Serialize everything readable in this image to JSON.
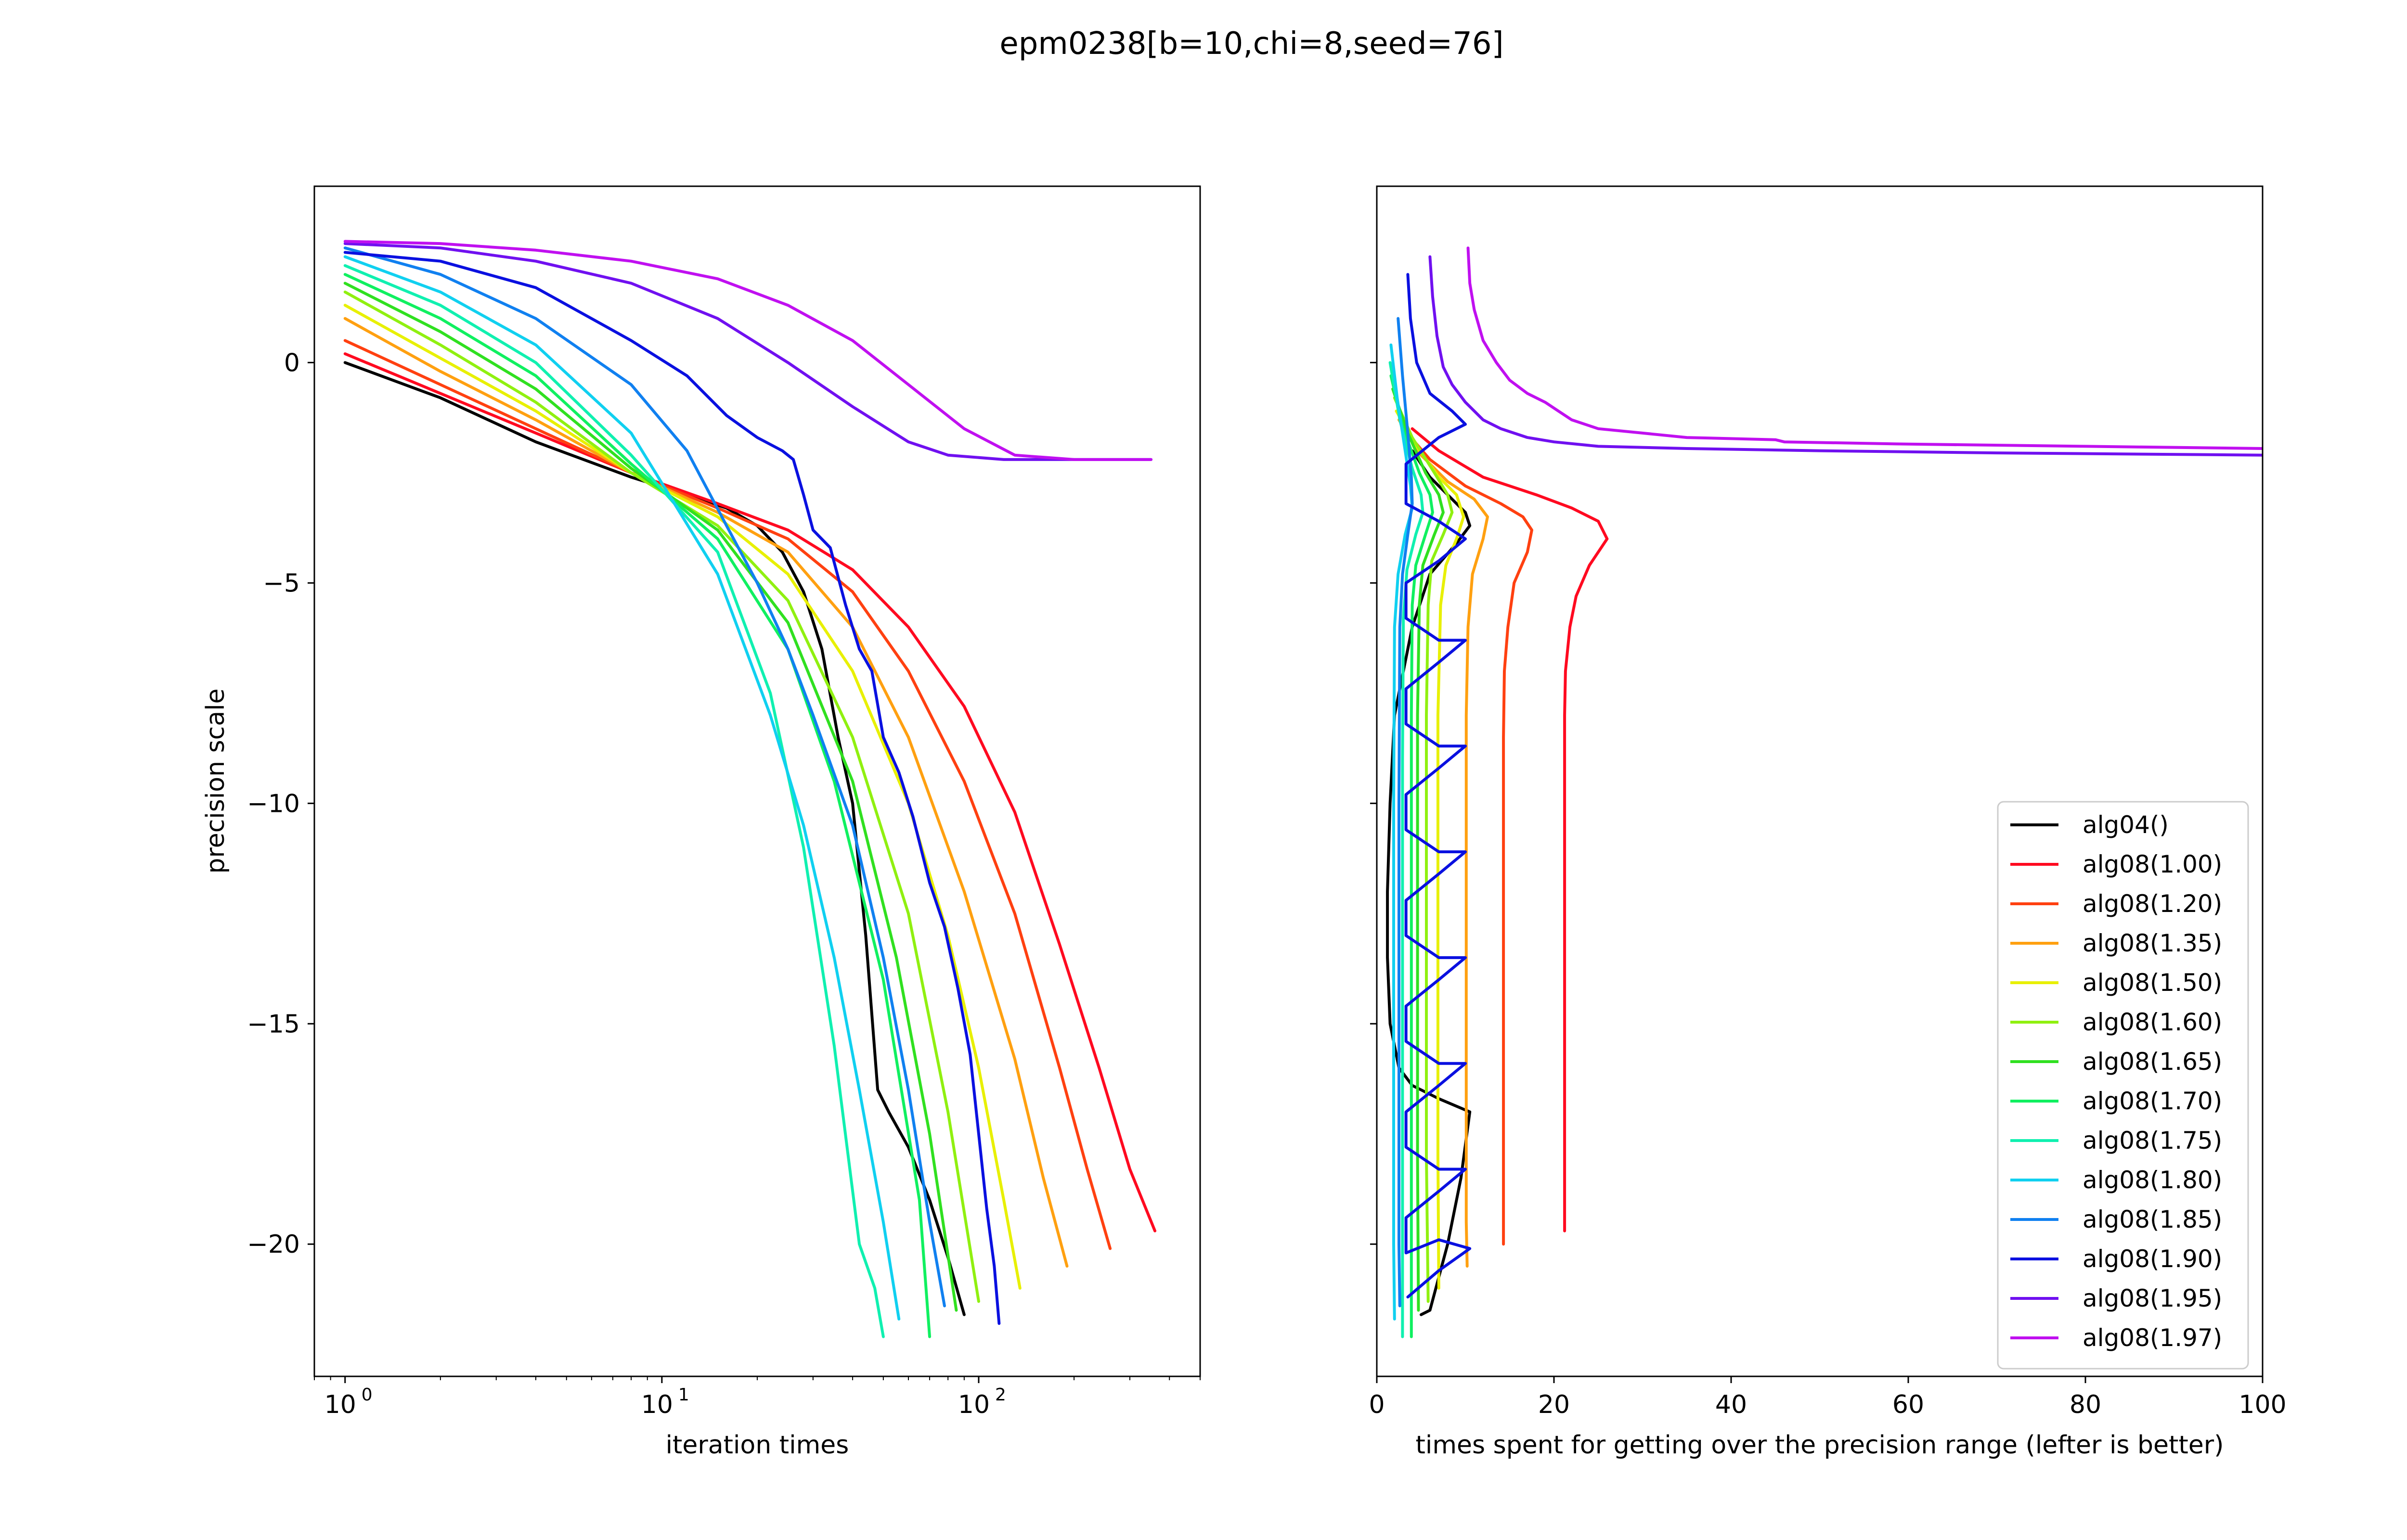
{
  "title": "epm0238[b=10,chi=8,seed=76]",
  "chart_data": [
    {
      "type": "line",
      "xscale": "log",
      "xlabel": "iteration times",
      "ylabel": "precision scale",
      "xlim": [
        0.8,
        500
      ],
      "ylim": [
        -23,
        4
      ],
      "xticks": [
        {
          "value": 1,
          "base": "10",
          "exp": "0"
        },
        {
          "value": 10,
          "base": "10",
          "exp": "1"
        },
        {
          "value": 100,
          "base": "10",
          "exp": "2"
        }
      ],
      "yticks": [
        {
          "value": 0,
          "label": "0"
        },
        {
          "value": -5,
          "label": "−5"
        },
        {
          "value": -10,
          "label": "−10"
        },
        {
          "value": -15,
          "label": "−15"
        },
        {
          "value": -20,
          "label": "−20"
        }
      ],
      "series": [
        {
          "name": "alg04()",
          "color": "#000000",
          "x": [
            1,
            2,
            4,
            8,
            12,
            16,
            20,
            24,
            28,
            32,
            36,
            40,
            44,
            48,
            52,
            60,
            70,
            80,
            90
          ],
          "y": [
            0,
            -0.8,
            -1.8,
            -2.6,
            -3.0,
            -3.3,
            -3.7,
            -4.3,
            -5.2,
            -6.5,
            -8.5,
            -10.0,
            -13,
            -16.5,
            -17.0,
            -17.8,
            -19.0,
            -20.3,
            -21.6
          ]
        },
        {
          "name": "alg08(1.00)",
          "color": "#ff0a20",
          "x": [
            1,
            2,
            4,
            8,
            15,
            25,
            40,
            60,
            90,
            130,
            180,
            240,
            300,
            360
          ],
          "y": [
            0.2,
            -0.7,
            -1.6,
            -2.5,
            -3.2,
            -3.8,
            -4.7,
            -6.0,
            -7.8,
            -10.2,
            -13.2,
            -16.0,
            -18.3,
            -19.7
          ]
        },
        {
          "name": "alg08(1.20)",
          "color": "#ff4010",
          "x": [
            1,
            2,
            4,
            8,
            15,
            25,
            40,
            60,
            90,
            130,
            180,
            220,
            260
          ],
          "y": [
            0.5,
            -0.5,
            -1.5,
            -2.5,
            -3.3,
            -4.0,
            -5.2,
            -7.0,
            -9.5,
            -12.5,
            -16.0,
            -18.3,
            -20.1
          ]
        },
        {
          "name": "alg08(1.35)",
          "color": "#ffa010",
          "x": [
            1,
            2,
            4,
            8,
            15,
            25,
            40,
            60,
            90,
            130,
            160,
            190
          ],
          "y": [
            1.0,
            -0.2,
            -1.3,
            -2.5,
            -3.4,
            -4.3,
            -6.0,
            -8.5,
            -12.0,
            -15.8,
            -18.5,
            -20.5
          ]
        },
        {
          "name": "alg08(1.50)",
          "color": "#e8f000",
          "x": [
            1,
            2,
            4,
            8,
            15,
            25,
            40,
            60,
            80,
            100,
            120,
            135
          ],
          "y": [
            1.3,
            0.1,
            -1.1,
            -2.5,
            -3.5,
            -4.8,
            -7.0,
            -10.0,
            -13.0,
            -16.0,
            -19.0,
            -21.0
          ]
        },
        {
          "name": "alg08(1.60)",
          "color": "#90f010",
          "x": [
            1,
            2,
            4,
            8,
            15,
            25,
            40,
            60,
            80,
            100
          ],
          "y": [
            1.6,
            0.4,
            -0.9,
            -2.5,
            -3.7,
            -5.4,
            -8.5,
            -12.5,
            -17.0,
            -21.3
          ]
        },
        {
          "name": "alg08(1.65)",
          "color": "#30e020",
          "x": [
            1,
            2,
            4,
            8,
            15,
            25,
            40,
            55,
            70,
            85
          ],
          "y": [
            1.8,
            0.7,
            -0.6,
            -2.4,
            -3.8,
            -5.9,
            -9.5,
            -13.5,
            -17.5,
            -21.5
          ]
        },
        {
          "name": "alg08(1.70)",
          "color": "#10f060",
          "x": [
            1,
            2,
            4,
            8,
            15,
            25,
            35,
            50,
            65,
            70
          ],
          "y": [
            2.0,
            1.0,
            -0.3,
            -2.3,
            -4.0,
            -6.5,
            -9.5,
            -14.0,
            -19.0,
            -22.1
          ]
        },
        {
          "name": "alg08(1.75)",
          "color": "#10f0b0",
          "x": [
            1,
            2,
            4,
            8,
            15,
            22,
            28,
            35,
            42,
            47,
            50
          ],
          "y": [
            2.2,
            1.3,
            0.0,
            -2.1,
            -4.3,
            -7.5,
            -11.0,
            -15.5,
            -20.0,
            -21.0,
            -22.1
          ]
        },
        {
          "name": "alg08(1.80)",
          "color": "#10d0f0",
          "x": [
            1,
            2,
            4,
            8,
            15,
            22,
            28,
            35,
            42,
            50,
            56
          ],
          "y": [
            2.4,
            1.6,
            0.4,
            -1.6,
            -4.8,
            -8.0,
            -10.5,
            -13.5,
            -16.5,
            -19.5,
            -21.7
          ]
        },
        {
          "name": "alg08(1.85)",
          "color": "#1080f0",
          "x": [
            1,
            2,
            4,
            8,
            12,
            16,
            20,
            25,
            30,
            40,
            50,
            60,
            70,
            78
          ],
          "y": [
            2.6,
            2.0,
            1.0,
            -0.5,
            -2.0,
            -3.7,
            -5.0,
            -6.5,
            -8.0,
            -10.5,
            -13.5,
            -16.5,
            -19.5,
            -21.4
          ]
        },
        {
          "name": "alg08(1.90)",
          "color": "#0a10e0",
          "x": [
            1,
            2,
            4,
            8,
            12,
            16,
            20,
            24,
            26,
            28,
            30,
            34,
            38,
            42,
            46,
            50,
            56,
            62,
            70,
            78,
            86,
            94,
            100,
            106,
            112,
            116
          ],
          "y": [
            2.5,
            2.3,
            1.7,
            0.5,
            -0.3,
            -1.2,
            -1.7,
            -2.0,
            -2.2,
            -3.0,
            -3.8,
            -4.2,
            -5.5,
            -6.5,
            -7.0,
            -8.5,
            -9.3,
            -10.3,
            -11.8,
            -12.8,
            -14.2,
            -15.7,
            -17.5,
            -19.2,
            -20.5,
            -21.8
          ]
        },
        {
          "name": "alg08(1.95)",
          "color": "#7010f0",
          "x": [
            1,
            2,
            4,
            8,
            15,
            25,
            40,
            60,
            80,
            120,
            200,
            350
          ],
          "y": [
            2.7,
            2.6,
            2.3,
            1.8,
            1.0,
            0.0,
            -1.0,
            -1.8,
            -2.1,
            -2.2,
            -2.2,
            -2.2
          ]
        },
        {
          "name": "alg08(1.97)",
          "color": "#c010f0",
          "x": [
            1,
            2,
            4,
            8,
            15,
            25,
            40,
            60,
            90,
            130,
            200,
            350
          ],
          "y": [
            2.75,
            2.7,
            2.55,
            2.3,
            1.9,
            1.3,
            0.5,
            -0.5,
            -1.5,
            -2.1,
            -2.2,
            -2.2
          ]
        }
      ]
    },
    {
      "type": "line",
      "xlabel": "times spent for getting over the precision range (lefter is better)",
      "ylabel": "",
      "xlim": [
        0,
        100
      ],
      "ylim": [
        -23,
        4
      ],
      "xticks": [
        {
          "value": 0,
          "label": "0"
        },
        {
          "value": 20,
          "label": "20"
        },
        {
          "value": 40,
          "label": "40"
        },
        {
          "value": 60,
          "label": "60"
        },
        {
          "value": 80,
          "label": "80"
        },
        {
          "value": 100,
          "label": "100"
        }
      ],
      "yticks": [
        0,
        -5,
        -10,
        -15,
        -20
      ],
      "legend_position": "lower-right",
      "series": [
        {
          "name": "alg04()",
          "color": "#000000",
          "x": [
            4,
            6,
            8,
            10,
            10.5,
            9,
            6,
            4,
            2,
            1.5,
            1.2,
            1.2,
            1.5,
            2.5,
            4,
            7,
            10.5,
            9.5,
            8,
            6,
            5
          ],
          "y": [
            -2,
            -2.6,
            -3.0,
            -3.4,
            -3.7,
            -4.1,
            -4.8,
            -6,
            -8,
            -10,
            -12,
            -13.5,
            -15,
            -16,
            -16.4,
            -16.7,
            -17,
            -18.5,
            -20,
            -21.5,
            -21.6
          ]
        },
        {
          "name": "alg08(1.00)",
          "color": "#ff0a20",
          "x": [
            4,
            7,
            12,
            18,
            22,
            25,
            26,
            24,
            22.5,
            21.8,
            21.3,
            21.2,
            21.2,
            21.2,
            21.2,
            21.2
          ],
          "y": [
            -1.5,
            -2.0,
            -2.6,
            -3.0,
            -3.3,
            -3.6,
            -4.0,
            -4.6,
            -5.3,
            -6.0,
            -7.0,
            -8.0,
            -10,
            -14,
            -18,
            -19.7
          ]
        },
        {
          "name": "alg08(1.20)",
          "color": "#ff4010",
          "x": [
            3,
            6,
            10,
            14,
            16.5,
            17.5,
            17,
            15.5,
            14.8,
            14.4,
            14.3,
            14.3,
            14.3,
            14.3
          ],
          "y": [
            -1.5,
            -2.2,
            -2.8,
            -3.2,
            -3.5,
            -3.8,
            -4.3,
            -5.0,
            -6.0,
            -7.0,
            -8.5,
            -12,
            -17,
            -20
          ]
        },
        {
          "name": "alg08(1.35)",
          "color": "#ffa010",
          "x": [
            2.5,
            5,
            8,
            11,
            12.5,
            12,
            10.8,
            10.3,
            10.1,
            10.1,
            10.1,
            10.1,
            10.2
          ],
          "y": [
            -1.3,
            -2.1,
            -2.7,
            -3.1,
            -3.5,
            -4.0,
            -4.8,
            -6.0,
            -8,
            -12,
            -16,
            -19.5,
            -20.5
          ]
        },
        {
          "name": "alg08(1.50)",
          "color": "#e8f000",
          "x": [
            2.2,
            4.5,
            7,
            9,
            9.8,
            9,
            7.8,
            7.2,
            6.9,
            6.9,
            6.9,
            7.0
          ],
          "y": [
            -1.1,
            -1.9,
            -2.6,
            -3.0,
            -3.5,
            -4.0,
            -4.6,
            -5.5,
            -8,
            -13,
            -18,
            -21
          ]
        },
        {
          "name": "alg08(1.60)",
          "color": "#90f010",
          "x": [
            2,
            4,
            6.5,
            8,
            8.5,
            7.5,
            6.2,
            5.8,
            5.6,
            5.6,
            5.6,
            5.8
          ],
          "y": [
            -0.8,
            -1.7,
            -2.5,
            -3.0,
            -3.4,
            -3.9,
            -4.5,
            -5.5,
            -8,
            -13,
            -18,
            -21.3
          ]
        },
        {
          "name": "alg08(1.65)",
          "color": "#30e020",
          "x": [
            1.8,
            3.5,
            5.5,
            7,
            7.5,
            6.5,
            5.2,
            4.8,
            4.6,
            4.6,
            4.6,
            4.7
          ],
          "y": [
            -0.6,
            -1.6,
            -2.5,
            -3.0,
            -3.4,
            -3.9,
            -4.6,
            -5.5,
            -8,
            -13,
            -18,
            -21.5
          ]
        },
        {
          "name": "alg08(1.70)",
          "color": "#10f060",
          "x": [
            1.6,
            3,
            4.8,
            6,
            6.3,
            5.5,
            4.4,
            4.0,
            3.9,
            3.9,
            3.9,
            3.9
          ],
          "y": [
            -0.3,
            -1.5,
            -2.5,
            -3.0,
            -3.4,
            -3.9,
            -4.6,
            -5.5,
            -8,
            -13,
            -18,
            -22.1
          ]
        },
        {
          "name": "alg08(1.75)",
          "color": "#10f0b0",
          "x": [
            1.5,
            2.6,
            4,
            5,
            5.2,
            4.4,
            3.4,
            3.0,
            2.9,
            2.9,
            2.9,
            2.9
          ],
          "y": [
            0,
            -1.3,
            -2.4,
            -3.0,
            -3.4,
            -3.9,
            -4.7,
            -5.8,
            -9,
            -14,
            -19,
            -22.1
          ]
        },
        {
          "name": "alg08(1.80)",
          "color": "#10d0f0",
          "x": [
            1.6,
            2.3,
            3.2,
            3.8,
            4.0,
            3.2,
            2.4,
            2.0,
            1.9,
            1.9,
            1.9,
            2.0
          ],
          "y": [
            0.4,
            -0.8,
            -2.0,
            -2.8,
            -3.3,
            -3.9,
            -4.8,
            -6.0,
            -10,
            -15,
            -20,
            -21.7
          ]
        },
        {
          "name": "alg08(1.85)",
          "color": "#1080f0",
          "x": [
            2.4,
            2.9,
            3.5,
            3.9,
            4.0,
            3.5,
            2.9,
            2.6,
            2.5,
            2.5,
            2.5,
            2.6
          ],
          "y": [
            1.0,
            -0.3,
            -1.6,
            -2.6,
            -3.2,
            -3.9,
            -4.8,
            -6.0,
            -10,
            -15,
            -20,
            -21.4
          ]
        },
        {
          "name": "alg08(1.90)",
          "color": "#0a10e0",
          "x": [
            3.5,
            3.8,
            4.5,
            6,
            8.5,
            10,
            7,
            3.3,
            3.3,
            7,
            10,
            7,
            3.3,
            3.3,
            7,
            10,
            7,
            3.3,
            3.3,
            7,
            10,
            7,
            3.3,
            3.3,
            7,
            10,
            7,
            3.3,
            3.3,
            7,
            10,
            7,
            3.3,
            3.3,
            7,
            10,
            7,
            3.3,
            3.3,
            7,
            10,
            7,
            3.3,
            3.3,
            7,
            10.5,
            7,
            3.5
          ],
          "y": [
            2.0,
            1.0,
            0,
            -0.7,
            -1.1,
            -1.4,
            -1.7,
            -2.3,
            -3.2,
            -3.6,
            -4.0,
            -4.5,
            -5.0,
            -5.8,
            -6.3,
            -6.3,
            -6.8,
            -7.4,
            -8.2,
            -8.7,
            -8.7,
            -9.2,
            -9.8,
            -10.6,
            -11.1,
            -11.1,
            -11.6,
            -12.2,
            -13.0,
            -13.5,
            -13.5,
            -14.0,
            -14.6,
            -15.4,
            -15.9,
            -15.9,
            -16.4,
            -17.0,
            -17.8,
            -18.3,
            -18.3,
            -18.8,
            -19.4,
            -20.2,
            -19.9,
            -20.1,
            -20.6,
            -21.2
          ]
        },
        {
          "name": "alg08(1.95)",
          "color": "#7010f0",
          "x": [
            6,
            6.3,
            6.8,
            7.5,
            8.5,
            10,
            12,
            14,
            17,
            20,
            25,
            35,
            50,
            70,
            100
          ],
          "y": [
            2.4,
            1.5,
            0.6,
            -0.1,
            -0.5,
            -0.9,
            -1.3,
            -1.5,
            -1.7,
            -1.8,
            -1.9,
            -1.95,
            -2.0,
            -2.05,
            -2.1
          ]
        },
        {
          "name": "alg08(1.97)",
          "color": "#c010f0",
          "x": [
            10.3,
            10.5,
            11,
            12,
            13.5,
            15,
            17,
            19,
            20.5,
            22,
            25,
            30,
            35,
            45,
            46,
            60,
            80,
            100
          ],
          "y": [
            2.6,
            1.8,
            1.2,
            0.5,
            0,
            -0.4,
            -0.7,
            -0.9,
            -1.1,
            -1.3,
            -1.5,
            -1.6,
            -1.7,
            -1.75,
            -1.8,
            -1.85,
            -1.9,
            -1.95
          ]
        }
      ]
    }
  ]
}
